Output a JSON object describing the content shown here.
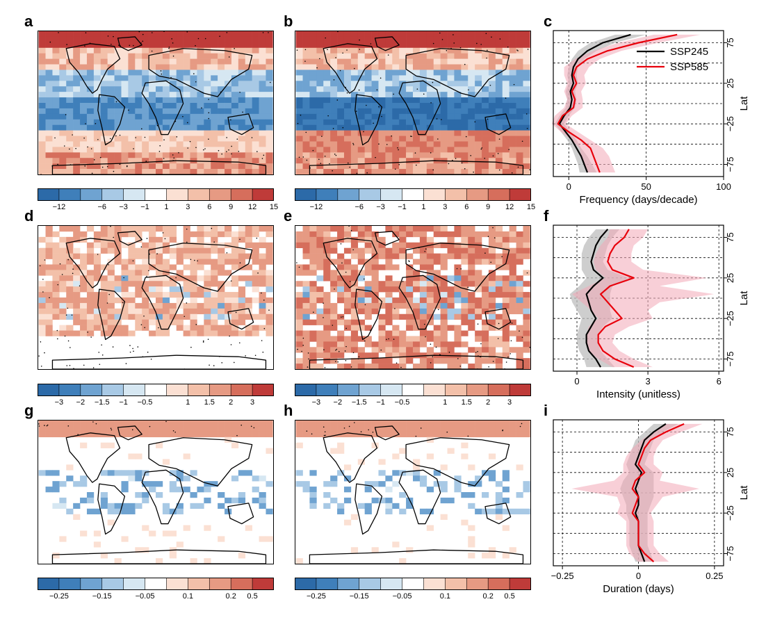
{
  "panels": {
    "a": "a",
    "b": "b",
    "c": "c",
    "d": "d",
    "e": "e",
    "f": "f",
    "g": "g",
    "h": "h",
    "i": "i"
  },
  "colorbars": {
    "frequency": {
      "ticks": [
        "−12",
        "−6",
        "−3",
        "−1",
        "1",
        "3",
        "6",
        "9",
        "12",
        "15"
      ],
      "colors": [
        "#2c6aa8",
        "#3f7fba",
        "#6fa3d1",
        "#a8c9e5",
        "#d6e7f2",
        "#ffffff",
        "#fbe0d3",
        "#f3c0a9",
        "#e69a83",
        "#d66e5c",
        "#bf3b39"
      ]
    },
    "intensity": {
      "ticks": [
        "−3",
        "−2",
        "−1.5",
        "−1",
        "−0.5",
        "1",
        "1.5",
        "2",
        "3"
      ],
      "colors": [
        "#2c6aa8",
        "#3f7fba",
        "#6fa3d1",
        "#a8c9e5",
        "#d6e7f2",
        "#ffffff",
        "#fbe0d3",
        "#f3c0a9",
        "#e69a83",
        "#d66e5c",
        "#bf3b39"
      ]
    },
    "duration": {
      "ticks": [
        "−0.25",
        "−0.15",
        "−0.05",
        "0.1",
        "0.2",
        "0.5"
      ],
      "colors": [
        "#2c6aa8",
        "#3f7fba",
        "#6fa3d1",
        "#a8c9e5",
        "#d6e7f2",
        "#ffffff",
        "#fbe0d3",
        "#f3c0a9",
        "#e69a83",
        "#d66e5c",
        "#bf3b39"
      ]
    }
  },
  "legend": {
    "ssp245": "SSP245",
    "ssp585": "SSP585"
  },
  "series_colors": {
    "ssp245": "#000000",
    "ssp585": "#e8000b",
    "ssp245_band": "#bdbdbd",
    "ssp585_band": "#f2a7b6"
  },
  "chart_data": [
    {
      "type": "line",
      "panel": "c",
      "xlabel": "Frequency (days/decade)",
      "ylabel": "Lat",
      "xlim": [
        -10,
        100
      ],
      "ylim": [
        -90,
        90
      ],
      "xticks": [
        "0",
        "50",
        "100"
      ],
      "xtick_values": [
        0,
        50,
        100
      ],
      "yticks": [
        "75",
        "25",
        "−25",
        "−75"
      ],
      "ytick_values": [
        75,
        25,
        -25,
        -75
      ],
      "lat": [
        85,
        75,
        65,
        55,
        45,
        35,
        25,
        15,
        5,
        -5,
        -15,
        -25,
        -35,
        -45,
        -55,
        -65,
        -75,
        -85
      ],
      "series": [
        {
          "name": "SSP245",
          "values": [
            40,
            22,
            12,
            6,
            3,
            2,
            3,
            1,
            2,
            1,
            -3,
            -6,
            -2,
            2,
            5,
            8,
            10,
            12
          ],
          "low": [
            30,
            14,
            6,
            2,
            0,
            -1,
            0,
            -2,
            -1,
            -2,
            -6,
            -9,
            -5,
            -1,
            2,
            4,
            6,
            7
          ],
          "high": [
            50,
            30,
            18,
            10,
            6,
            5,
            6,
            4,
            5,
            4,
            0,
            -3,
            1,
            5,
            8,
            12,
            15,
            18
          ]
        },
        {
          "name": "SSP585",
          "values": [
            70,
            45,
            25,
            12,
            5,
            3,
            5,
            2,
            4,
            3,
            -4,
            -7,
            0,
            8,
            14,
            16,
            18,
            20
          ],
          "low": [
            55,
            32,
            16,
            4,
            -3,
            -3,
            -1,
            -3,
            -1,
            -3,
            -9,
            -11,
            -5,
            2,
            7,
            8,
            10,
            12
          ],
          "high": [
            85,
            58,
            34,
            20,
            13,
            10,
            11,
            8,
            9,
            9,
            2,
            -2,
            6,
            14,
            22,
            26,
            28,
            30
          ]
        }
      ]
    },
    {
      "type": "line",
      "panel": "f",
      "xlabel": "Intensity (unitless)",
      "ylabel": "Lat",
      "xlim": [
        -1,
        6.2
      ],
      "ylim": [
        -90,
        90
      ],
      "xticks": [
        "0",
        "3",
        "6"
      ],
      "xtick_values": [
        0,
        3,
        6
      ],
      "yticks": [
        "75",
        "25",
        "−25",
        "−75"
      ],
      "ytick_values": [
        75,
        25,
        -25,
        -75
      ],
      "lat": [
        85,
        75,
        65,
        55,
        45,
        35,
        25,
        15,
        5,
        -5,
        -15,
        -25,
        -35,
        -45,
        -55,
        -65,
        -75,
        -85
      ],
      "series": [
        {
          "name": "SSP245",
          "values": [
            1.3,
            1.0,
            0.8,
            0.7,
            0.6,
            0.7,
            1.1,
            0.7,
            0.4,
            0.5,
            0.6,
            0.8,
            0.6,
            0.4,
            0.4,
            0.5,
            0.8,
            1.0
          ],
          "low": [
            0.8,
            0.5,
            0.3,
            0.2,
            0.2,
            0.2,
            0.4,
            0.1,
            -0.3,
            -0.2,
            0.0,
            0.2,
            0.1,
            0.0,
            0.0,
            0.1,
            0.3,
            0.4
          ],
          "high": [
            1.8,
            1.5,
            1.3,
            1.2,
            1.1,
            1.3,
            2.2,
            1.5,
            1.4,
            1.4,
            1.4,
            1.5,
            1.1,
            0.9,
            0.9,
            1.0,
            1.3,
            1.6
          ]
        },
        {
          "name": "SSP585",
          "values": [
            2.2,
            2.0,
            1.6,
            1.4,
            1.3,
            1.5,
            2.4,
            1.4,
            1.0,
            1.3,
            1.6,
            1.9,
            1.2,
            0.9,
            0.9,
            1.1,
            1.6,
            2.4
          ],
          "low": [
            1.4,
            1.3,
            1.0,
            0.8,
            0.7,
            0.8,
            1.2,
            0.5,
            -0.2,
            0.2,
            0.6,
            0.9,
            0.5,
            0.4,
            0.4,
            0.5,
            0.9,
            1.5
          ],
          "high": [
            3.0,
            2.8,
            2.4,
            2.3,
            2.3,
            2.8,
            5.5,
            3.5,
            5.8,
            3.5,
            3.0,
            3.2,
            2.2,
            1.6,
            1.5,
            1.8,
            2.4,
            3.2
          ]
        }
      ]
    },
    {
      "type": "line",
      "panel": "i",
      "xlabel": "Duration (days)",
      "ylabel": "Lat",
      "xlim": [
        -0.28,
        0.28
      ],
      "ylim": [
        -90,
        90
      ],
      "xticks": [
        "−0.25",
        "0",
        "0.25"
      ],
      "xtick_values": [
        -0.25,
        0,
        0.25
      ],
      "yticks": [
        "75",
        "25",
        "−25",
        "−75"
      ],
      "ytick_values": [
        75,
        25,
        -25,
        -75
      ],
      "lat": [
        85,
        75,
        65,
        55,
        45,
        35,
        25,
        15,
        5,
        -5,
        -15,
        -25,
        -35,
        -45,
        -55,
        -65,
        -75,
        -85
      ],
      "series": [
        {
          "name": "SSP245",
          "values": [
            0.09,
            0.05,
            0.02,
            0.01,
            0.0,
            -0.01,
            0.01,
            0.0,
            -0.01,
            0.0,
            0.0,
            -0.01,
            0.0,
            0.0,
            0.0,
            0.0,
            0.01,
            0.02
          ],
          "low": [
            0.05,
            0.02,
            -0.01,
            -0.02,
            -0.03,
            -0.04,
            -0.03,
            -0.05,
            -0.06,
            -0.05,
            -0.04,
            -0.04,
            -0.03,
            -0.03,
            -0.03,
            -0.03,
            -0.02,
            -0.01
          ],
          "high": [
            0.13,
            0.08,
            0.05,
            0.04,
            0.03,
            0.02,
            0.05,
            0.05,
            0.05,
            0.05,
            0.04,
            0.03,
            0.03,
            0.03,
            0.03,
            0.03,
            0.04,
            0.05
          ]
        },
        {
          "name": "SSP585",
          "values": [
            0.15,
            0.09,
            0.04,
            0.02,
            0.01,
            0.0,
            0.02,
            -0.01,
            -0.02,
            0.0,
            -0.01,
            -0.02,
            0.0,
            0.0,
            0.0,
            0.0,
            0.02,
            0.05
          ],
          "low": [
            0.09,
            0.05,
            0.01,
            -0.02,
            -0.04,
            -0.05,
            -0.05,
            -0.08,
            -0.22,
            -0.07,
            -0.06,
            -0.07,
            -0.04,
            -0.04,
            -0.04,
            -0.04,
            -0.03,
            0.0
          ],
          "high": [
            0.21,
            0.14,
            0.08,
            0.06,
            0.05,
            0.05,
            0.08,
            0.07,
            0.2,
            0.08,
            0.06,
            0.04,
            0.05,
            0.05,
            0.05,
            0.05,
            0.07,
            0.1
          ]
        }
      ]
    }
  ]
}
